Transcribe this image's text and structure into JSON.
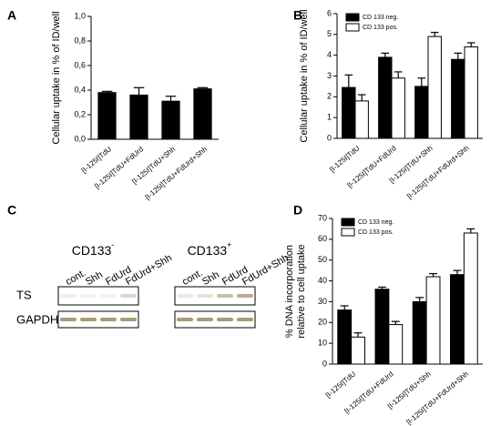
{
  "chart_data": [
    {
      "type": "bar",
      "panel": "A",
      "ylabel": [
        "Cellular uptake in % of ID/well"
      ],
      "categories": [
        "[I-125I]TdU",
        "[I-125I]TdU+FdUrd",
        "[I-125I]TdU+Shh",
        "[I-125I]TdU+FdUrd+Shh"
      ],
      "values": [
        0.38,
        0.36,
        0.31,
        0.41
      ],
      "errors": [
        0.01,
        0.06,
        0.04,
        0.01
      ],
      "color": "#000000",
      "ylim": [
        0,
        1
      ],
      "yticks": [
        {
          "value": 0,
          "label": "0,0"
        },
        {
          "value": 0.2,
          "label": "0,2"
        },
        {
          "value": 0.4,
          "label": "0,4"
        },
        {
          "value": 0.6,
          "label": "0,6"
        },
        {
          "value": 0.8,
          "label": "0,8"
        },
        {
          "value": 1,
          "label": "1,0"
        }
      ]
    },
    {
      "type": "bar",
      "panel": "B",
      "ylabel": [
        "Cellular uptake in % of ID/well"
      ],
      "categories": [
        "[I-125I]TdU",
        "[I-125I]TdU+FdUrd",
        "[I-125I]TdU+Shh",
        "[I-125I]TdU+FdUrd+Shh"
      ],
      "series": [
        {
          "name": "CD 133 neg.",
          "color": "#000000",
          "values": [
            2.45,
            3.9,
            2.5,
            3.8
          ],
          "errors": [
            0.6,
            0.2,
            0.4,
            0.3
          ]
        },
        {
          "name": "CD 133 pos.",
          "color": "#ffffff",
          "values": [
            1.8,
            2.9,
            4.9,
            4.4
          ],
          "errors": [
            0.3,
            0.3,
            0.2,
            0.2
          ]
        }
      ],
      "ylim": [
        0,
        6
      ],
      "yticks": [
        0,
        1,
        2,
        3,
        4,
        5,
        6
      ],
      "legend": "upper left"
    },
    {
      "type": "bar",
      "panel": "D",
      "ylabel": [
        "% DNA incorporation",
        "relative to cell uptake"
      ],
      "categories": [
        "[I-125I]TdU",
        "[I-125I]TdU+FdUrd",
        "[I-125I]TdU+Shh",
        "[I-125I]TdU+FdUrd+Shh"
      ],
      "series": [
        {
          "name": "CD 133 neg.",
          "color": "#000000",
          "values": [
            26,
            36,
            30,
            43
          ],
          "errors": [
            2,
            1,
            2,
            2
          ]
        },
        {
          "name": "CD 133 pos.",
          "color": "#ffffff",
          "values": [
            13,
            19,
            42,
            63
          ],
          "errors": [
            2,
            1.5,
            1.5,
            2
          ]
        }
      ],
      "ylim": [
        0,
        70
      ],
      "yticks": [
        0,
        10,
        20,
        30,
        40,
        50,
        60,
        70
      ],
      "legend": "upper left"
    }
  ],
  "blot": {
    "panel": "C",
    "rows": [
      "TS",
      "GAPDH"
    ],
    "groups": [
      {
        "name": "CD133",
        "sign": "-",
        "lanes": [
          "cont.",
          "Shh",
          "FdUrd",
          "FdUrd+Shh"
        ]
      },
      {
        "name": "CD133",
        "sign": "+",
        "lanes": [
          "cont.",
          "Shh",
          "FdUrd",
          "FdUrd+Shh"
        ]
      }
    ]
  }
}
